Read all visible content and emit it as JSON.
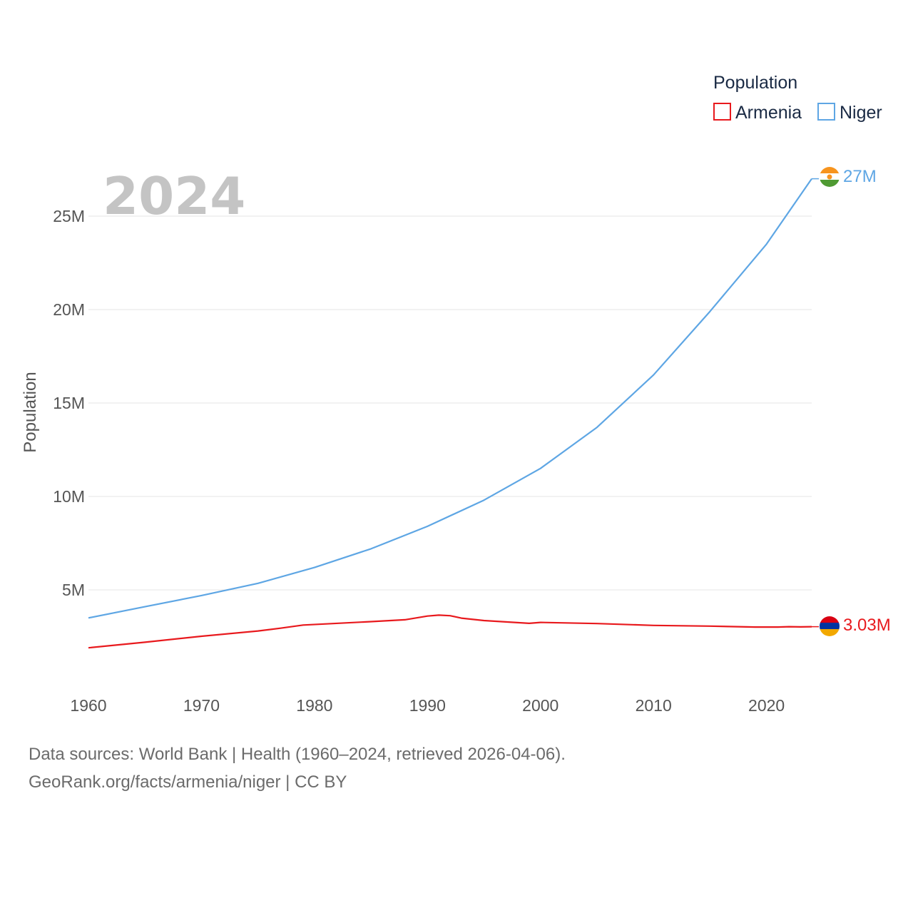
{
  "chart_data": {
    "type": "line",
    "year_label": "2024",
    "ylabel": "Population",
    "legend_title": "Population",
    "x_range": [
      1960,
      2024
    ],
    "ylim": [
      0,
      27000000
    ],
    "x_ticks": [
      1960,
      1970,
      1980,
      1990,
      2000,
      2010,
      2020
    ],
    "x_tick_labels": [
      "1960",
      "1970",
      "1980",
      "1990",
      "2000",
      "2010",
      "2020"
    ],
    "y_ticks": [
      5000000,
      10000000,
      15000000,
      20000000,
      25000000
    ],
    "y_tick_labels": [
      "5M",
      "10M",
      "15M",
      "20M",
      "25M"
    ],
    "series": [
      {
        "name": "Armenia",
        "color": "#e8191d",
        "end_label": "3.03M",
        "flag": "armenia-flag-icon",
        "x": [
          1960,
          1965,
          1970,
          1975,
          1977,
          1979,
          1985,
          1988,
          1990,
          1991,
          1992,
          1993,
          1995,
          1999,
          2000,
          2005,
          2010,
          2015,
          2019,
          2021,
          2022,
          2023,
          2024
        ],
        "values": [
          1900000,
          2200000,
          2520000,
          2800000,
          2950000,
          3120000,
          3300000,
          3400000,
          3600000,
          3650000,
          3620000,
          3490000,
          3360000,
          3210000,
          3260000,
          3200000,
          3100000,
          3060000,
          3010000,
          3010000,
          3030000,
          3020000,
          3030000
        ]
      },
      {
        "name": "Niger",
        "color": "#5ea6e4",
        "end_label": "27M",
        "flag": "niger-flag-icon",
        "x": [
          1960,
          1965,
          1970,
          1975,
          1980,
          1985,
          1990,
          1995,
          2000,
          2005,
          2010,
          2015,
          2020,
          2024
        ],
        "values": [
          3500000,
          4100000,
          4700000,
          5350000,
          6200000,
          7200000,
          8400000,
          9800000,
          11500000,
          13700000,
          16500000,
          19900000,
          23500000,
          27000000
        ]
      }
    ]
  },
  "footer": {
    "line1": "Data sources: World Bank | Health (1960–2024, retrieved 2026-04-06).",
    "line2": "GeoRank.org/facts/armenia/niger | CC BY"
  }
}
